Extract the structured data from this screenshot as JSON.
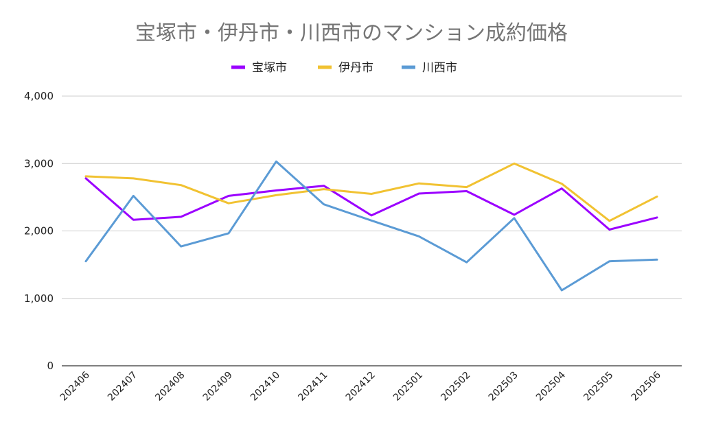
{
  "chart_data": {
    "type": "line",
    "title": "宝塚市・伊丹市・川西市のマンション成約価格",
    "xlabel": "",
    "ylabel": "",
    "categories": [
      "202406",
      "202407",
      "202408",
      "202409",
      "202410",
      "202411",
      "202412",
      "202501",
      "202502",
      "202503",
      "202504",
      "202505",
      "202506"
    ],
    "ylim": [
      0,
      4000
    ],
    "yticks": [
      0,
      1000,
      2000,
      3000,
      4000
    ],
    "ytick_labels": [
      "0",
      "1,000",
      "2,000",
      "3,000",
      "4,000"
    ],
    "grid": true,
    "legend_position": "top-center",
    "series": [
      {
        "name": "宝塚市",
        "color": "#9b00ff",
        "values": [
          2780,
          2165,
          2210,
          2520,
          2600,
          2670,
          2230,
          2555,
          2590,
          2240,
          2630,
          2020,
          2200
        ]
      },
      {
        "name": "伊丹市",
        "color": "#f1c232",
        "values": [
          2810,
          2780,
          2680,
          2410,
          2530,
          2620,
          2550,
          2705,
          2650,
          3000,
          2700,
          2150,
          2510
        ]
      },
      {
        "name": "川西市",
        "color": "#5b9bd5",
        "values": [
          1550,
          2520,
          1770,
          1965,
          3030,
          2395,
          2155,
          1920,
          1535,
          2190,
          1120,
          1550,
          1575
        ]
      }
    ]
  }
}
